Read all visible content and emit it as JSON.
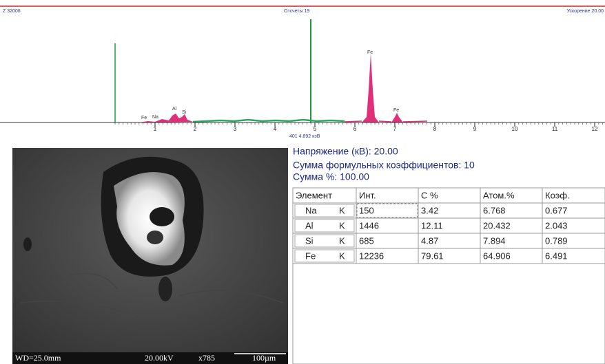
{
  "spectrum": {
    "left_label": "Z 32006",
    "center_label": "Отсчеты 19",
    "right_label": "Ускорение 20.00",
    "x_ticks": [
      1,
      2,
      3,
      4,
      5,
      6,
      7,
      8,
      9,
      10,
      11,
      12
    ],
    "cursor_label": "401 4.892 кэВ",
    "peak_labels": [
      "Fe",
      "Na",
      "Al",
      "Si",
      "Fe",
      "Fe"
    ]
  },
  "image": {
    "caption": [
      "WD=25.0mm",
      "20.00kV",
      "x785",
      "100µm"
    ]
  },
  "info": [
    "Напряжение (кВ): 20.00",
    "Сумма формульных коэффициентов: 10",
    "Сумма %: 100.00"
  ],
  "table": {
    "header": [
      "Элемент",
      "Инт.",
      "С %",
      "Атом.%",
      "Коэф."
    ],
    "rows": [
      [
        "Na",
        "K",
        "150",
        "3.42",
        "6.768",
        "0.677"
      ],
      [
        "Al",
        "K",
        "1446",
        "12.11",
        "20.432",
        "2.043"
      ],
      [
        "Si",
        "K",
        "685",
        "4.87",
        "7.894",
        "0.789"
      ],
      [
        "Fe",
        "K",
        "12236",
        "79.61",
        "64.906",
        "6.491"
      ]
    ]
  }
}
